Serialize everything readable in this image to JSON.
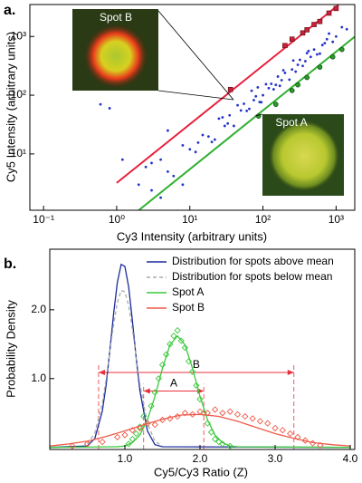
{
  "chart_data": [
    {
      "type": "scatter",
      "panel_label": "a.",
      "x_label": "Cy3 Intensity (arbitrary units)",
      "y_label": "Cy5 Intensity (arbitrary units)",
      "xscale": "log",
      "yscale": "log",
      "xlim": [
        0.065,
        1800
      ],
      "ylim": [
        1.1,
        3500
      ],
      "xticks": [
        {
          "value": 0.1,
          "label": "10⁻¹"
        },
        {
          "value": 1,
          "label": "10⁰"
        },
        {
          "value": 10,
          "label": "10¹"
        },
        {
          "value": 100,
          "label": "10²"
        },
        {
          "value": 1000,
          "label": "10³"
        }
      ],
      "yticks": [
        {
          "value": 10,
          "label": "10¹"
        },
        {
          "value": 100,
          "label": "10²"
        },
        {
          "value": 1000,
          "label": "10³"
        }
      ],
      "series": [
        {
          "color": "#2233c8",
          "marker": "dot",
          "x": [
            2,
            3,
            4,
            5,
            6,
            8,
            10,
            12,
            15,
            18,
            20,
            25,
            30,
            35,
            40,
            45,
            50,
            60,
            70,
            80,
            90,
            100,
            110,
            120,
            140,
            160,
            180,
            200,
            230,
            260,
            300,
            350,
            400,
            450,
            500,
            600,
            700,
            800,
            900,
            1000,
            1200,
            1400,
            13,
            22,
            28,
            33,
            55,
            65,
            75,
            85,
            95,
            130,
            150,
            170,
            190,
            250,
            280,
            320,
            380,
            420,
            550,
            650,
            750,
            0.6,
            0.8,
            1.2,
            2.5,
            3,
            5,
            8,
            4
          ],
          "values": [
            3,
            2.4,
            8,
            5,
            4.2,
            14,
            12,
            10.8,
            21,
            19.8,
            16,
            40,
            30,
            45.5,
            30,
            67.5,
            55,
            54,
            119,
            96,
            76.5,
            100,
            154,
            132,
            126,
            208,
            180,
            240,
            184,
            390,
            330,
            315,
            520,
            450,
            600,
            510,
            770,
            1120,
            810,
            1000,
            1440,
            1330,
            15.6,
            17.6,
            42,
            33,
            71.5,
            58.5,
            82.5,
            136,
            76,
            156,
            150,
            144.5,
            266,
            275,
            252,
            400,
            380,
            567,
            495,
            715,
            900,
            70,
            60,
            8,
            6,
            7,
            25,
            3,
            1.8
          ]
        },
        {
          "color": "#c8203a",
          "marker": "square",
          "x": [
            36,
            200,
            250,
            350,
            400,
            500,
            600,
            800,
            1000
          ],
          "values": [
            125,
            700,
            900,
            1150,
            1300,
            1600,
            1800,
            2500,
            3000
          ]
        },
        {
          "color": "#2a9a2a",
          "marker": "circle",
          "x": [
            87,
            150,
            250,
            300,
            400,
            600,
            900,
            1200
          ],
          "values": [
            44,
            70,
            120,
            150,
            200,
            300,
            450,
            600
          ]
        }
      ],
      "lines": [
        {
          "color": "#e8203c",
          "x": [
            1,
            1080
          ],
          "values": [
            3.2,
            3456
          ]
        },
        {
          "color": "#30b030",
          "x": [
            2,
            1800
          ],
          "values": [
            1.1,
            990
          ]
        }
      ],
      "insets": [
        {
          "label": "Spot B"
        },
        {
          "label": "Spot A"
        }
      ]
    },
    {
      "type": "line",
      "panel_label": "b.",
      "x_label": "Cy5/Cy3 Ratio (Z)",
      "y_label": "Probability Density",
      "xlim": [
        0,
        4.06
      ],
      "ylim": [
        -0.03,
        2.88
      ],
      "xticks": [
        {
          "value": 1,
          "label": "1.0"
        },
        {
          "value": 2,
          "label": "2.0"
        },
        {
          "value": 3,
          "label": "3.0"
        },
        {
          "value": 4,
          "label": "4.0"
        }
      ],
      "yticks": [
        {
          "value": 1,
          "label": "1.0"
        },
        {
          "value": 2,
          "label": "2.0"
        }
      ],
      "legend": "upper right",
      "series": [
        {
          "name": "Distribution for spots above mean",
          "color": "#1a2a9a",
          "x": [
            0,
            0.5,
            0.6,
            0.7,
            0.75,
            0.8,
            0.85,
            0.9,
            0.95,
            1.0,
            1.05,
            1.1,
            1.15,
            1.2,
            1.3,
            1.4,
            1.5,
            4.0
          ],
          "values": [
            0,
            0.02,
            0.13,
            0.53,
            0.91,
            1.41,
            1.95,
            2.4,
            2.66,
            2.63,
            2.33,
            1.84,
            1.3,
            0.82,
            0.24,
            0.04,
            0.01,
            0
          ]
        },
        {
          "name": "Distribution for spots below mean",
          "color": "#aaaaaa",
          "dash": true,
          "x": [
            0.5,
            0.6,
            0.7,
            0.75,
            0.8,
            0.85,
            0.9,
            0.95,
            1.0,
            1.05,
            1.1,
            1.15,
            1.2,
            1.3,
            1.4,
            1.5
          ],
          "values": [
            0.05,
            0.21,
            0.65,
            1.0,
            1.4,
            1.79,
            2.11,
            2.28,
            2.26,
            2.06,
            1.72,
            1.31,
            0.92,
            0.35,
            0.09,
            0.02
          ]
        },
        {
          "name": "Spot A",
          "color": "#3cc83c",
          "x": [
            0,
            0.9,
            1.0,
            1.1,
            1.2,
            1.3,
            1.4,
            1.5,
            1.6,
            1.7,
            1.8,
            1.9,
            2.0,
            2.1,
            2.2,
            2.3,
            2.4,
            2.5,
            4.0
          ],
          "values": [
            0,
            0.01,
            0.02,
            0.07,
            0.18,
            0.4,
            0.74,
            1.15,
            1.49,
            1.62,
            1.49,
            1.15,
            0.74,
            0.4,
            0.18,
            0.07,
            0.02,
            0.01,
            0
          ],
          "points": {
            "x": [
              1.05,
              1.1,
              1.15,
              1.2,
              1.25,
              1.3,
              1.35,
              1.4,
              1.45,
              1.5,
              1.55,
              1.6,
              1.65,
              1.7,
              1.75,
              1.8,
              1.85,
              1.9,
              1.95,
              2.0,
              2.05,
              2.1,
              2.15,
              2.2,
              2.25,
              2.3,
              2.4
            ],
            "values": [
              0.05,
              0.12,
              0.2,
              0.3,
              0.45,
              0.35,
              0.6,
              0.8,
              1.0,
              1.2,
              1.35,
              1.5,
              1.62,
              1.7,
              1.55,
              1.45,
              1.25,
              1.1,
              0.9,
              0.7,
              0.5,
              0.35,
              0.22,
              0.12,
              0.08,
              0.05,
              0.02
            ]
          }
        },
        {
          "name": "Spot B",
          "color": "#ee5a4a",
          "x": [
            0,
            0.25,
            0.5,
            0.75,
            1.0,
            1.25,
            1.5,
            1.75,
            2.0,
            2.25,
            2.5,
            2.75,
            3.0,
            3.25,
            3.5,
            3.75,
            4.0
          ],
          "values": [
            0.02,
            0.05,
            0.09,
            0.16,
            0.24,
            0.33,
            0.41,
            0.47,
            0.48,
            0.45,
            0.38,
            0.29,
            0.2,
            0.13,
            0.07,
            0.04,
            0.02
          ],
          "points": {
            "x": [
              0.3,
              0.5,
              0.7,
              0.9,
              1.0,
              1.1,
              1.2,
              1.3,
              1.4,
              1.5,
              1.6,
              1.7,
              1.8,
              1.9,
              2.0,
              2.1,
              2.2,
              2.3,
              2.4,
              2.5,
              2.6,
              2.7,
              2.8,
              2.9,
              3.0,
              3.1,
              3.2,
              3.3,
              3.4,
              3.5,
              3.6
            ],
            "values": [
              0.02,
              0.05,
              0.08,
              0.15,
              0.18,
              0.25,
              0.28,
              0.35,
              0.33,
              0.4,
              0.42,
              0.45,
              0.5,
              0.48,
              0.52,
              0.5,
              0.55,
              0.5,
              0.52,
              0.48,
              0.45,
              0.42,
              0.38,
              0.35,
              0.28,
              0.25,
              0.2,
              0.15,
              0.1,
              0.06,
              0.03
            ]
          }
        }
      ],
      "intervals": [
        {
          "label": "B",
          "color": "#e8303c",
          "range": [
            0.65,
            3.25
          ],
          "y": 1.09
        },
        {
          "label": "A",
          "color": "#e8303c",
          "range": [
            1.25,
            2.05
          ],
          "y": 0.82
        }
      ]
    }
  ]
}
